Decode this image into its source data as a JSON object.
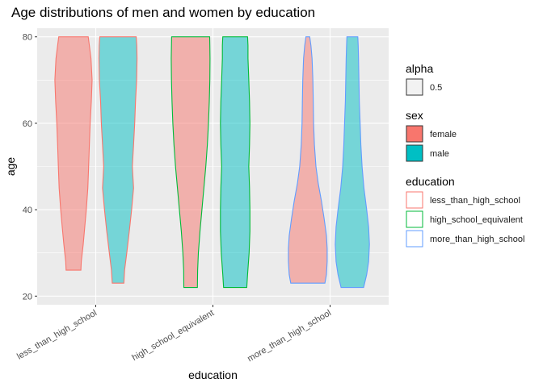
{
  "chart_data": {
    "type": "violin",
    "title": "Age distributions of men and women by education",
    "xlabel": "education",
    "ylabel": "age",
    "ylim": [
      18,
      82
    ],
    "y_ticks": [
      20,
      40,
      60,
      80
    ],
    "categories": [
      "less_than_high_school",
      "high_school_equivalent",
      "more_than_high_school"
    ],
    "grid": true,
    "colors": {
      "female": "#F8766D",
      "male": "#00BFC4",
      "less_than_high_school": "#F8766D",
      "high_school_equivalent": "#00BA38",
      "more_than_high_school": "#619CFF"
    },
    "violins": [
      {
        "category": "less_than_high_school",
        "sex": "female",
        "min": 26,
        "max": 80,
        "profile": [
          [
            26,
            0.38
          ],
          [
            28,
            0.4
          ],
          [
            32,
            0.5
          ],
          [
            36,
            0.58
          ],
          [
            40,
            0.66
          ],
          [
            45,
            0.74
          ],
          [
            50,
            0.78
          ],
          [
            55,
            0.82
          ],
          [
            60,
            0.86
          ],
          [
            65,
            0.92
          ],
          [
            70,
            0.96
          ],
          [
            75,
            0.9
          ],
          [
            78,
            0.82
          ],
          [
            80,
            0.76
          ]
        ]
      },
      {
        "category": "less_than_high_school",
        "sex": "male",
        "min": 23,
        "max": 80,
        "profile": [
          [
            23,
            0.3
          ],
          [
            26,
            0.34
          ],
          [
            30,
            0.45
          ],
          [
            35,
            0.58
          ],
          [
            40,
            0.7
          ],
          [
            45,
            0.8
          ],
          [
            50,
            0.74
          ],
          [
            55,
            0.8
          ],
          [
            60,
            0.86
          ],
          [
            65,
            0.9
          ],
          [
            70,
            0.96
          ],
          [
            75,
            0.98
          ],
          [
            78,
            0.97
          ],
          [
            80,
            0.94
          ]
        ]
      },
      {
        "category": "high_school_equivalent",
        "sex": "female",
        "min": 22,
        "max": 80,
        "profile": [
          [
            22,
            0.35
          ],
          [
            26,
            0.36
          ],
          [
            30,
            0.4
          ],
          [
            35,
            0.48
          ],
          [
            40,
            0.58
          ],
          [
            45,
            0.68
          ],
          [
            50,
            0.78
          ],
          [
            55,
            0.86
          ],
          [
            60,
            0.92
          ],
          [
            65,
            0.96
          ],
          [
            70,
            0.99
          ],
          [
            75,
            1.0
          ],
          [
            78,
            0.99
          ],
          [
            80,
            0.98
          ]
        ]
      },
      {
        "category": "high_school_equivalent",
        "sex": "male",
        "min": 22,
        "max": 80,
        "profile": [
          [
            22,
            0.6
          ],
          [
            25,
            0.64
          ],
          [
            30,
            0.72
          ],
          [
            35,
            0.76
          ],
          [
            40,
            0.76
          ],
          [
            45,
            0.74
          ],
          [
            50,
            0.7
          ],
          [
            55,
            0.74
          ],
          [
            60,
            0.76
          ],
          [
            65,
            0.74
          ],
          [
            70,
            0.7
          ],
          [
            75,
            0.66
          ],
          [
            78,
            0.66
          ],
          [
            80,
            0.64
          ]
        ]
      },
      {
        "category": "more_than_high_school",
        "sex": "female",
        "min": 23,
        "max": 80,
        "profile": [
          [
            23,
            0.88
          ],
          [
            25,
            0.96
          ],
          [
            28,
            1.0
          ],
          [
            31,
            1.0
          ],
          [
            34,
            0.96
          ],
          [
            38,
            0.84
          ],
          [
            42,
            0.7
          ],
          [
            46,
            0.54
          ],
          [
            50,
            0.42
          ],
          [
            55,
            0.34
          ],
          [
            60,
            0.3
          ],
          [
            65,
            0.28
          ],
          [
            70,
            0.26
          ],
          [
            75,
            0.22
          ],
          [
            78,
            0.16
          ],
          [
            80,
            0.1
          ]
        ]
      },
      {
        "category": "more_than_high_school",
        "sex": "male",
        "min": 22,
        "max": 80,
        "profile": [
          [
            22,
            0.58
          ],
          [
            25,
            0.74
          ],
          [
            28,
            0.84
          ],
          [
            32,
            0.88
          ],
          [
            36,
            0.84
          ],
          [
            40,
            0.74
          ],
          [
            45,
            0.6
          ],
          [
            50,
            0.5
          ],
          [
            55,
            0.44
          ],
          [
            60,
            0.4
          ],
          [
            65,
            0.36
          ],
          [
            70,
            0.34
          ],
          [
            75,
            0.32
          ],
          [
            78,
            0.3
          ],
          [
            80,
            0.28
          ]
        ]
      }
    ],
    "legend": {
      "position": "right",
      "groups": [
        {
          "title": "alpha",
          "items": [
            {
              "label": "0.5",
              "swatch": "alpha"
            }
          ]
        },
        {
          "title": "sex",
          "items": [
            {
              "label": "female",
              "key": "female"
            },
            {
              "label": "male",
              "key": "male"
            }
          ]
        },
        {
          "title": "education",
          "items": [
            {
              "label": "less_than_high_school",
              "key": "less_than_high_school"
            },
            {
              "label": "high_school_equivalent",
              "key": "high_school_equivalent"
            },
            {
              "label": "more_than_high_school",
              "key": "more_than_high_school"
            }
          ]
        }
      ]
    }
  }
}
